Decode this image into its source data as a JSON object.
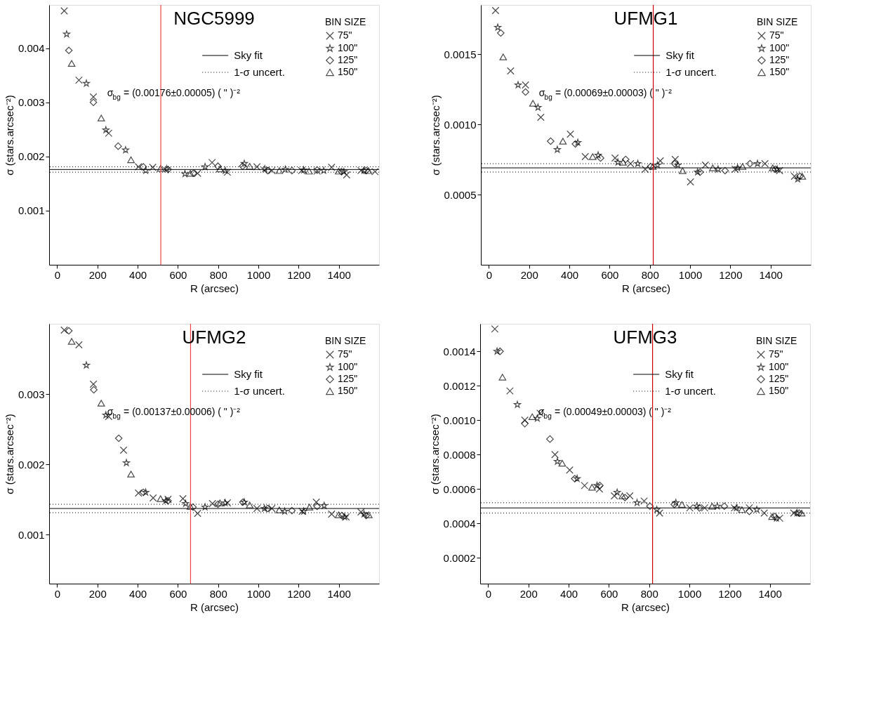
{
  "chart_data": [
    {
      "type": "scatter",
      "title": "NGC5999",
      "xlabel": "R (arcsec)",
      "ylabel": "σ (stars.arcsec⁻²)",
      "legend_title": "BIN SIZE",
      "legend": "top right",
      "annotations": [
        "σ$_{bg}$ = (0.00176±0.00005) ( \" )⁻²"
      ],
      "xlim": [
        -40,
        1600
      ],
      "xticks": [
        0,
        200,
        400,
        600,
        800,
        1000,
        1200,
        1400
      ],
      "ylim": [
        0,
        0.0048
      ],
      "yticks": [
        0.001,
        0.002,
        0.003,
        0.004
      ],
      "ref_lines": [
        {
          "axis": "y",
          "value": 0.00176,
          "label": "Sky fit",
          "line_style": "solid",
          "color": "#000000"
        },
        {
          "axis": "y",
          "value": 0.00171,
          "label": "1-σ uncert.",
          "line_style": "dotted",
          "color": "#000000"
        },
        {
          "axis": "y",
          "value": 0.00181,
          "line_style": "dotted",
          "color": "#000000"
        },
        {
          "axis": "x",
          "value": 515,
          "color": "#ee4444",
          "line_style": "solid"
        }
      ],
      "series": [
        {
          "name": "75\"",
          "color": "#000000",
          "marker": "cross",
          "x": [
            35,
            108,
            180,
            256,
            404,
            475,
            698,
            770,
            846,
            993,
            1067,
            1215,
            1292,
            1364,
            1439,
            1510,
            1580
          ],
          "values": [
            0.00469,
            0.00341,
            0.0031,
            0.00243,
            0.00181,
            0.0018,
            0.00169,
            0.00189,
            0.00171,
            0.00181,
            0.00174,
            0.00174,
            0.00173,
            0.0018,
            0.00166,
            0.00174,
            0.00172
          ]
        },
        {
          "name": "100\"",
          "color": "#000000",
          "marker": "star",
          "x": [
            47,
            145,
            242,
            340,
            440,
            544,
            635,
            735,
            835,
            930,
            1032,
            1134,
            1225,
            1325,
            1425,
            1525
          ],
          "values": [
            0.00426,
            0.00335,
            0.00249,
            0.00212,
            0.00174,
            0.00177,
            0.00168,
            0.00181,
            0.00174,
            0.00187,
            0.00177,
            0.00176,
            0.00175,
            0.00174,
            0.00172,
            0.00174
          ]
        },
        {
          "name": "125\"",
          "color": "#000000",
          "marker": "diamond",
          "x": [
            58,
            180,
            303,
            428,
            551,
            677,
            799,
            922,
            1046,
            1167,
            1292,
            1413,
            1536
          ],
          "values": [
            0.00396,
            0.003,
            0.00219,
            0.00181,
            0.00176,
            0.00169,
            0.00182,
            0.00182,
            0.00174,
            0.00174,
            0.00175,
            0.00172,
            0.00174
          ]
        },
        {
          "name": "150\"",
          "color": "#000000",
          "marker": "triangle",
          "x": [
            72,
            219,
            367,
            514,
            662,
            809,
            957,
            1104,
            1252,
            1399,
            1547
          ],
          "values": [
            0.00372,
            0.00271,
            0.00194,
            0.00178,
            0.00169,
            0.00177,
            0.00182,
            0.00174,
            0.00173,
            0.00173,
            0.00174
          ]
        }
      ]
    },
    {
      "type": "scatter",
      "title": "UFMG1",
      "xlabel": "R (arcsec)",
      "ylabel": "σ (stars.arcsec⁻²)",
      "legend_title": "BIN SIZE",
      "legend": "top right",
      "annotations": [
        "σ$_{bg}$ = (0.00069±0.00003) ( \" )⁻²"
      ],
      "xlim": [
        -40,
        1600
      ],
      "xticks": [
        0,
        200,
        400,
        600,
        800,
        1000,
        1200,
        1400
      ],
      "ylim": [
        0,
        0.00185
      ],
      "yticks": [
        0.0005,
        {
          "value": 0.001,
          "label": "0.0010"
        },
        0.0015
      ],
      "ref_lines": [
        {
          "axis": "y",
          "value": 0.00069,
          "label": "Sky fit",
          "line_style": "solid",
          "color": "#000000"
        },
        {
          "axis": "y",
          "value": 0.00066,
          "label": "1-σ uncert.",
          "line_style": "dotted",
          "color": "#000000"
        },
        {
          "axis": "y",
          "value": 0.00072,
          "line_style": "dotted",
          "color": "#000000"
        },
        {
          "axis": "x",
          "value": 817,
          "color": "#cc0000",
          "line_style": "solid"
        }
      ],
      "series": [
        {
          "name": "75\"",
          "color": "#000000",
          "marker": "cross",
          "x": [
            33,
            108,
            182,
            258,
            405,
            479,
            627,
            704,
            777,
            852,
            926,
            1002,
            1076,
            1224,
            1372,
            1445,
            1519
          ],
          "values": [
            0.00181,
            0.00138,
            0.00128,
            0.00105,
            0.00093,
            0.00077,
            0.00076,
            0.00072,
            0.00068,
            0.00074,
            0.00075,
            0.00059,
            0.00071,
            0.00068,
            0.00072,
            0.00067,
            0.00063
          ]
        },
        {
          "name": "100\"",
          "color": "#000000",
          "marker": "star",
          "x": [
            44,
            145,
            244,
            340,
            442,
            543,
            641,
            740,
            838,
            939,
            1037,
            1139,
            1236,
            1335,
            1433,
            1535
          ],
          "values": [
            0.00169,
            0.00128,
            0.00112,
            0.00082,
            0.00087,
            0.00078,
            0.00073,
            0.00072,
            0.00071,
            0.00071,
            0.00066,
            0.00068,
            0.00069,
            0.00072,
            0.00068,
            0.00061
          ]
        },
        {
          "name": "125\"",
          "color": "#000000",
          "marker": "diamond",
          "x": [
            59,
            182,
            307,
            430,
            555,
            680,
            804,
            923,
            1050,
            1174,
            1298,
            1424,
            1546
          ],
          "values": [
            0.00165,
            0.00123,
            0.00088,
            0.00086,
            0.00076,
            0.00075,
            0.0007,
            0.00072,
            0.00066,
            0.00067,
            0.00072,
            0.00068,
            0.00063
          ]
        },
        {
          "name": "150\"",
          "color": "#000000",
          "marker": "triangle",
          "x": [
            71,
            219,
            368,
            516,
            667,
            815,
            963,
            1113,
            1261,
            1411,
            1558
          ],
          "values": [
            0.00148,
            0.00115,
            0.00088,
            0.00077,
            0.00073,
            0.0007,
            0.00067,
            0.00069,
            0.0007,
            0.00069,
            0.00063
          ]
        }
      ]
    },
    {
      "type": "scatter",
      "title": "UFMG2",
      "xlabel": "R (arcsec)",
      "ylabel": "σ (stars.arcsec⁻²)",
      "legend_title": "BIN SIZE",
      "legend": "top right",
      "annotations": [
        "σ$_{bg}$ = (0.00137±0.00006) ( \" )⁻²"
      ],
      "xlim": [
        -40,
        1600
      ],
      "xticks": [
        0,
        200,
        400,
        600,
        800,
        1000,
        1200,
        1400
      ],
      "ylim": [
        0.0003,
        0.004
      ],
      "yticks": [
        0.001,
        0.002,
        0.003
      ],
      "ref_lines": [
        {
          "axis": "y",
          "value": 0.00137,
          "label": "Sky fit",
          "line_style": "solid",
          "color": "#000000"
        },
        {
          "axis": "y",
          "value": 0.00131,
          "label": "1-σ uncert.",
          "line_style": "dotted",
          "color": "#000000"
        },
        {
          "axis": "y",
          "value": 0.00143,
          "line_style": "dotted",
          "color": "#000000"
        },
        {
          "axis": "x",
          "value": 663,
          "color": "#ee4444",
          "line_style": "solid"
        }
      ],
      "series": [
        {
          "name": "75\"",
          "color": "#000000",
          "marker": "cross",
          "x": [
            35,
            108,
            180,
            256,
            330,
            404,
            477,
            551,
            625,
            698,
            772,
            846,
            993,
            1067,
            1218,
            1288,
            1364,
            1436,
            1510
          ],
          "values": [
            0.00391,
            0.0037,
            0.00314,
            0.00268,
            0.0022,
            0.00159,
            0.00152,
            0.0015,
            0.00151,
            0.0013,
            0.00144,
            0.00145,
            0.00137,
            0.00137,
            0.00133,
            0.00146,
            0.00129,
            0.00125,
            0.00132
          ]
        },
        {
          "name": "100\"",
          "color": "#000000",
          "marker": "star",
          "x": [
            145,
            242,
            344,
            440,
            540,
            638,
            735,
            835,
            930,
            1030,
            1131,
            1225,
            1327,
            1429,
            1525
          ],
          "values": [
            0.00341,
            0.0027,
            0.00202,
            0.0016,
            0.00148,
            0.00144,
            0.00139,
            0.00145,
            0.00146,
            0.00137,
            0.00133,
            0.00133,
            0.00141,
            0.00125,
            0.00129
          ]
        },
        {
          "name": "125\"",
          "color": "#000000",
          "marker": "diamond",
          "x": [
            58,
            182,
            306,
            428,
            551,
            675,
            799,
            923,
            1046,
            1167,
            1292,
            1415,
            1536
          ],
          "values": [
            0.0039,
            0.00306,
            0.00237,
            0.0016,
            0.00148,
            0.00139,
            0.00143,
            0.00146,
            0.00137,
            0.00134,
            0.0014,
            0.00127,
            0.00127
          ]
        },
        {
          "name": "150\"",
          "color": "#000000",
          "marker": "triangle",
          "x": [
            72,
            219,
            367,
            514,
            662,
            809,
            957,
            1104,
            1254,
            1399,
            1549
          ],
          "values": [
            0.00375,
            0.00287,
            0.00186,
            0.00151,
            0.0014,
            0.00145,
            0.00142,
            0.00135,
            0.00139,
            0.00128,
            0.00128
          ]
        }
      ]
    },
    {
      "type": "scatter",
      "title": "UFMG3",
      "xlabel": "R (arcsec)",
      "ylabel": "σ (stars.arcsec⁻²)",
      "legend_title": "BIN SIZE",
      "legend": "top right",
      "annotations": [
        "σ$_{bg}$ = (0.00049±0.00003) ( \" )⁻²"
      ],
      "xlim": [
        -40,
        1600
      ],
      "xticks": [
        0,
        200,
        400,
        600,
        800,
        1000,
        1200,
        1400
      ],
      "ylim": [
        5e-05,
        0.00156
      ],
      "yticks": [
        0.0002,
        0.0004,
        0.0006,
        0.0008,
        {
          "value": 0.001,
          "label": "0.0010"
        },
        0.0012,
        0.0014
      ],
      "ref_lines": [
        {
          "axis": "y",
          "value": 0.00049,
          "label": "Sky fit",
          "line_style": "solid",
          "color": "#000000"
        },
        {
          "axis": "y",
          "value": 0.00046,
          "label": "1-σ uncert.",
          "line_style": "dotted",
          "color": "#000000"
        },
        {
          "axis": "y",
          "value": 0.00052,
          "line_style": "dotted",
          "color": "#000000"
        },
        {
          "axis": "x",
          "value": 817,
          "color": "#cc0000",
          "line_style": "solid"
        }
      ],
      "series": [
        {
          "name": "75\"",
          "color": "#000000",
          "marker": "cross",
          "x": [
            33,
            108,
            182,
            258,
            332,
            405,
            479,
            553,
            627,
            704,
            775,
            852,
            1002,
            1076,
            1224,
            1298,
            1372,
            1449,
            1519
          ],
          "values": [
            0.00153,
            0.00117,
            0.001,
            0.00104,
            0.0008,
            0.00071,
            0.00062,
            0.0006,
            0.00056,
            0.00056,
            0.00053,
            0.00046,
            0.00049,
            0.00049,
            0.00049,
            0.00049,
            0.00046,
            0.00043,
            0.00046
          ]
        },
        {
          "name": "100\"",
          "color": "#000000",
          "marker": "star",
          "x": [
            44,
            145,
            244,
            344,
            442,
            541,
            641,
            740,
            838,
            933,
            1037,
            1139,
            1234,
            1335,
            1433,
            1535
          ],
          "values": [
            0.0014,
            0.00109,
            0.00101,
            0.00076,
            0.00066,
            0.00062,
            0.00058,
            0.00052,
            0.00048,
            0.00052,
            0.0005,
            0.0005,
            0.00049,
            0.00048,
            0.00043,
            0.00046
          ]
        },
        {
          "name": "125\"",
          "color": "#000000",
          "marker": "diamond",
          "x": [
            59,
            182,
            307,
            430,
            555,
            680,
            804,
            925,
            1050,
            1174,
            1298,
            1424,
            1546
          ],
          "values": [
            0.0014,
            0.00098,
            0.00089,
            0.00066,
            0.00062,
            0.00055,
            0.0005,
            0.00051,
            0.00049,
            0.0005,
            0.00047,
            0.00044,
            0.00046
          ]
        },
        {
          "name": "150\"",
          "color": "#000000",
          "marker": "triangle",
          "x": [
            71,
            219,
            368,
            516,
            667,
            963,
            1113,
            1261,
            1411,
            1558
          ],
          "values": [
            0.00125,
            0.00102,
            0.00075,
            0.00061,
            0.00056,
            0.00051,
            0.0005,
            0.00048,
            0.00044,
            0.00046
          ]
        }
      ]
    }
  ]
}
